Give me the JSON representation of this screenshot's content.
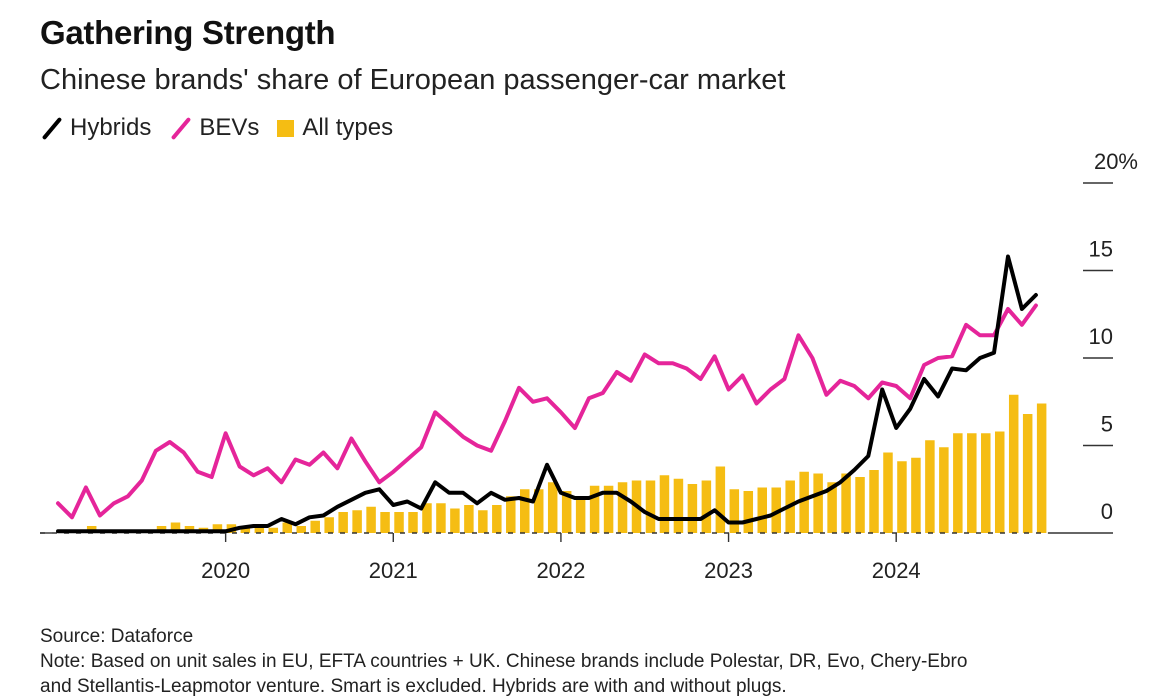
{
  "header": {
    "title": "Gathering Strength",
    "subtitle": "Chinese brands' share of European passenger-car market"
  },
  "legend": [
    {
      "label": "Hybrids",
      "type": "line",
      "color": "#000000"
    },
    {
      "label": "BEVs",
      "type": "line",
      "color": "#e5259a"
    },
    {
      "label": "All types",
      "type": "bar",
      "color": "#f5bd13"
    }
  ],
  "footer": {
    "source": "Source: Dataforce",
    "note": "Note: Based on unit sales in EU, EFTA countries + UK. Chinese brands include Polestar, DR, Evo, Chery-Ebro",
    "note_cont": "and Stellantis-Leapmotor venture. Smart is excluded. Hybrids are with and without plugs."
  },
  "chart_data": {
    "type": "bar+line",
    "title": "Gathering Strength",
    "subtitle": "Chinese brands' share of European passenger-car market",
    "xlabel": "",
    "ylabel": "",
    "x_start": "2019-01",
    "x_end": "2024-11",
    "x_frequency": "monthly",
    "x_tick_labels": [
      "2020",
      "2021",
      "2022",
      "2023",
      "2024"
    ],
    "x_tick_index": [
      12,
      24,
      36,
      48,
      60
    ],
    "y_ticks": [
      0,
      5,
      10,
      15,
      20
    ],
    "y_tick_labels": [
      "0",
      "5",
      "10",
      "15",
      "20%"
    ],
    "ylim": [
      0,
      20
    ],
    "y_axis_side": "right",
    "grid": false,
    "legend_position": "top-left",
    "series": [
      {
        "name": "All types",
        "type": "bar",
        "color": "#f5bd13",
        "values": [
          0.1,
          0.1,
          0.4,
          0.1,
          0.1,
          0.2,
          0.2,
          0.4,
          0.6,
          0.4,
          0.3,
          0.5,
          0.5,
          0.3,
          0.3,
          0.3,
          0.6,
          0.4,
          0.7,
          0.9,
          1.2,
          1.3,
          1.5,
          1.2,
          1.2,
          1.2,
          1.7,
          1.7,
          1.4,
          1.6,
          1.3,
          1.6,
          2.1,
          2.5,
          2.5,
          2.9,
          2.4,
          2.0,
          2.7,
          2.7,
          2.9,
          3.0,
          3.0,
          3.3,
          3.1,
          2.8,
          3.0,
          3.8,
          2.5,
          2.4,
          2.6,
          2.6,
          3.0,
          3.5,
          3.4,
          2.9,
          3.4,
          3.2,
          3.6,
          4.6,
          4.1,
          4.3,
          5.3,
          4.9,
          5.7,
          5.7,
          5.7,
          5.8,
          7.9,
          6.8,
          7.4
        ]
      },
      {
        "name": "BEVs",
        "type": "line",
        "color": "#e5259a",
        "values": [
          1.7,
          0.9,
          2.6,
          1.0,
          1.7,
          2.1,
          3.0,
          4.7,
          5.2,
          4.6,
          3.5,
          3.2,
          5.7,
          3.8,
          3.3,
          3.7,
          2.9,
          4.2,
          3.9,
          4.6,
          3.7,
          5.4,
          4.1,
          2.9,
          3.5,
          4.2,
          4.9,
          6.9,
          6.2,
          5.5,
          5.0,
          4.7,
          6.4,
          8.3,
          7.5,
          7.7,
          6.9,
          6.0,
          7.7,
          8.0,
          9.2,
          8.7,
          10.2,
          9.7,
          9.7,
          9.4,
          8.8,
          10.1,
          8.2,
          9.0,
          7.4,
          8.2,
          8.8,
          11.3,
          10.0,
          7.9,
          8.7,
          8.4,
          7.7,
          8.6,
          8.4,
          7.7,
          9.6,
          10.0,
          10.1,
          11.9,
          11.3,
          11.3,
          12.8,
          11.9,
          13.0
        ]
      },
      {
        "name": "Hybrids",
        "type": "line",
        "color": "#000000",
        "values": [
          0.1,
          0.1,
          0.1,
          0.1,
          0.1,
          0.1,
          0.1,
          0.1,
          0.1,
          0.1,
          0.1,
          0.1,
          0.1,
          0.3,
          0.4,
          0.4,
          0.8,
          0.5,
          0.9,
          1.0,
          1.5,
          1.9,
          2.3,
          2.5,
          1.6,
          1.8,
          1.4,
          2.9,
          2.3,
          2.3,
          1.7,
          2.3,
          1.9,
          2.0,
          1.8,
          3.9,
          2.3,
          2.0,
          2.0,
          2.3,
          2.3,
          1.8,
          1.2,
          0.8,
          0.8,
          0.8,
          0.8,
          1.3,
          0.6,
          0.6,
          0.8,
          1.0,
          1.4,
          1.8,
          2.1,
          2.4,
          2.9,
          3.6,
          4.4,
          8.2,
          6.0,
          7.1,
          8.8,
          7.8,
          9.4,
          9.3,
          10.0,
          10.3,
          15.8,
          12.8,
          13.6
        ]
      }
    ]
  }
}
